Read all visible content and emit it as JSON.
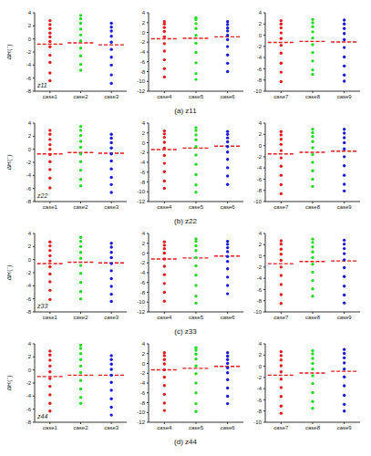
{
  "chart_data": [
    {
      "type": "scatter",
      "y_label": "ΔR(°)",
      "annotations": [
        "z11"
      ],
      "xlim": [
        0.5,
        3.5
      ],
      "xticks": [
        {
          "value": 1,
          "label": "case1"
        },
        {
          "value": 2,
          "label": "case2"
        },
        {
          "value": 3,
          "label": "case3"
        }
      ],
      "ylim": [
        -8,
        4
      ],
      "yticks": [
        -8,
        -6,
        -4,
        -2,
        0,
        2,
        4
      ],
      "series": [
        {
          "x": 1,
          "color": "#e41a1c",
          "marker": "circle",
          "values": [
            2.8,
            2.2,
            1.6,
            0.9,
            0.3,
            -0.4,
            -1.2,
            -2.5,
            -3.6,
            -5.2,
            -6.4
          ]
        },
        {
          "x": 2,
          "color": "#22dd22",
          "marker": "circle",
          "values": [
            3.6,
            3.1,
            2.4,
            1.5,
            0.6,
            -0.3,
            -1.4,
            -2.6,
            -3.9,
            -4.8
          ]
        },
        {
          "x": 3,
          "color": "#1a1ad8",
          "marker": "circle",
          "values": [
            2.4,
            1.8,
            1.2,
            0.4,
            -0.5,
            -1.6,
            -2.8,
            -4.0,
            -5.5,
            -6.8
          ]
        }
      ],
      "mean_line": {
        "values": [
          -0.8,
          -0.6,
          -0.9
        ],
        "color": "#e41a1c",
        "line_style": "dashed"
      }
    },
    {
      "type": "scatter",
      "title": "(a) z11",
      "xlim": [
        0.5,
        3.5
      ],
      "xticks": [
        {
          "value": 1,
          "label": "case4"
        },
        {
          "value": 2,
          "label": "case5"
        },
        {
          "value": 3,
          "label": "case6"
        }
      ],
      "ylim": [
        -12,
        4
      ],
      "yticks": [
        -12,
        -10,
        -8,
        -6,
        -4,
        -2,
        0,
        2,
        4
      ],
      "series": [
        {
          "x": 1,
          "color": "#e41a1c",
          "marker": "circle",
          "values": [
            2.2,
            1.7,
            1.0,
            0.2,
            -0.9,
            -2.3,
            -3.8,
            -5.6,
            -7.4,
            -9.1
          ]
        },
        {
          "x": 2,
          "color": "#22dd22",
          "marker": "circle",
          "values": [
            3.0,
            2.6,
            1.8,
            0.8,
            -0.6,
            -2.2,
            -4.1,
            -6.2,
            -8.4,
            -9.6
          ]
        },
        {
          "x": 3,
          "color": "#1a1ad8",
          "marker": "circle",
          "values": [
            2.2,
            1.6,
            0.9,
            0.3,
            -0.6,
            -1.5,
            -2.9,
            -4.6,
            -6.3,
            -8.0
          ]
        }
      ],
      "mean_line": {
        "values": [
          -1.3,
          -1.2,
          -0.9
        ],
        "color": "#e41a1c",
        "line_style": "dashed"
      }
    },
    {
      "type": "scatter",
      "xlim": [
        0.5,
        3.5
      ],
      "xticks": [
        {
          "value": 1,
          "label": "case7"
        },
        {
          "value": 2,
          "label": "case8"
        },
        {
          "value": 3,
          "label": "case9"
        }
      ],
      "ylim": [
        -10,
        4
      ],
      "yticks": [
        -10,
        -8,
        -6,
        -4,
        -2,
        0,
        2,
        4
      ],
      "series": [
        {
          "x": 1,
          "color": "#e41a1c",
          "marker": "circle",
          "values": [
            2.6,
            2.0,
            1.3,
            0.4,
            -0.6,
            -1.8,
            -3.2,
            -5.0,
            -6.6,
            -8.3
          ]
        },
        {
          "x": 2,
          "color": "#22dd22",
          "marker": "circle",
          "values": [
            2.8,
            2.2,
            1.5,
            0.6,
            -0.5,
            -1.7,
            -3.1,
            -4.6,
            -6.2,
            -7.0
          ]
        },
        {
          "x": 3,
          "color": "#1a1ad8",
          "marker": "circle",
          "values": [
            2.7,
            2.0,
            1.2,
            0.3,
            -0.8,
            -2.2,
            -3.9,
            -5.5,
            -7.1,
            -8.2
          ]
        }
      ],
      "mean_line": {
        "values": [
          -1.3,
          -1.1,
          -1.2
        ],
        "color": "#e41a1c",
        "line_style": "dashed"
      }
    },
    {
      "type": "scatter",
      "y_label": "ΔR(°)",
      "annotations": [
        "z22"
      ],
      "xlim": [
        0.5,
        3.5
      ],
      "xticks": [
        {
          "value": 1,
          "label": "case1"
        },
        {
          "value": 2,
          "label": "case2"
        },
        {
          "value": 3,
          "label": "case3"
        }
      ],
      "ylim": [
        -8,
        4
      ],
      "yticks": [
        -8,
        -6,
        -4,
        -2,
        0,
        2,
        4
      ],
      "series": [
        {
          "x": 1,
          "color": "#e41a1c",
          "marker": "circle",
          "values": [
            2.9,
            2.3,
            1.5,
            0.7,
            0.0,
            -0.8,
            -1.9,
            -3.1,
            -4.4,
            -5.9
          ]
        },
        {
          "x": 2,
          "color": "#22dd22",
          "marker": "circle",
          "values": [
            3.5,
            2.9,
            2.1,
            1.2,
            0.3,
            -0.7,
            -1.9,
            -3.2,
            -4.6,
            -5.6
          ]
        },
        {
          "x": 3,
          "color": "#1a1ad8",
          "marker": "circle",
          "values": [
            2.3,
            1.7,
            1.0,
            0.2,
            -0.7,
            -1.8,
            -3.0,
            -4.3,
            -5.4,
            -6.6
          ]
        }
      ],
      "mean_line": {
        "values": [
          -0.7,
          -0.5,
          -0.6
        ],
        "color": "#e41a1c",
        "line_style": "dashed"
      }
    },
    {
      "type": "scatter",
      "title": "(b) z22",
      "xlim": [
        0.5,
        3.5
      ],
      "xticks": [
        {
          "value": 1,
          "label": "case4"
        },
        {
          "value": 2,
          "label": "case5"
        },
        {
          "value": 3,
          "label": "case6"
        }
      ],
      "ylim": [
        -12,
        4
      ],
      "yticks": [
        -12,
        -10,
        -8,
        -6,
        -4,
        -2,
        0,
        2,
        4
      ],
      "series": [
        {
          "x": 1,
          "color": "#e41a1c",
          "marker": "circle",
          "values": [
            2.4,
            1.8,
            1.1,
            0.1,
            -1.1,
            -2.6,
            -4.2,
            -5.9,
            -7.8,
            -9.3
          ]
        },
        {
          "x": 2,
          "color": "#22dd22",
          "marker": "circle",
          "values": [
            3.1,
            2.5,
            1.6,
            0.6,
            -0.8,
            -2.5,
            -4.4,
            -6.5,
            -8.6,
            -10.1
          ]
        },
        {
          "x": 3,
          "color": "#1a1ad8",
          "marker": "circle",
          "values": [
            2.3,
            1.7,
            1.0,
            0.2,
            -0.8,
            -1.9,
            -3.4,
            -5.1,
            -6.8,
            -8.5
          ]
        }
      ],
      "mean_line": {
        "values": [
          -1.4,
          -1.1,
          -0.7
        ],
        "color": "#e41a1c",
        "line_style": "dashed"
      }
    },
    {
      "type": "scatter",
      "xlim": [
        0.5,
        3.5
      ],
      "xticks": [
        {
          "value": 1,
          "label": "case7"
        },
        {
          "value": 2,
          "label": "case8"
        },
        {
          "value": 3,
          "label": "case9"
        }
      ],
      "ylim": [
        -10,
        4
      ],
      "yticks": [
        -10,
        -8,
        -6,
        -4,
        -2,
        0,
        2,
        4
      ],
      "series": [
        {
          "x": 1,
          "color": "#e41a1c",
          "marker": "circle",
          "values": [
            2.5,
            1.9,
            1.1,
            0.2,
            -0.9,
            -2.2,
            -3.7,
            -5.3,
            -7.0,
            -8.6
          ]
        },
        {
          "x": 2,
          "color": "#22dd22",
          "marker": "circle",
          "values": [
            2.9,
            2.3,
            1.6,
            0.7,
            -0.4,
            -1.6,
            -3.0,
            -4.5,
            -6.0,
            -7.3
          ]
        },
        {
          "x": 3,
          "color": "#1a1ad8",
          "marker": "circle",
          "values": [
            2.9,
            2.2,
            1.4,
            0.5,
            -0.6,
            -2.0,
            -3.6,
            -5.3,
            -6.9,
            -8.1
          ]
        }
      ],
      "mean_line": {
        "values": [
          -1.5,
          -1.2,
          -1.0
        ],
        "color": "#e41a1c",
        "line_style": "dashed"
      }
    },
    {
      "type": "scatter",
      "y_label": "ΔR(°)",
      "annotations": [
        "z33"
      ],
      "xlim": [
        0.5,
        3.5
      ],
      "xticks": [
        {
          "value": 1,
          "label": "case1"
        },
        {
          "value": 2,
          "label": "case2"
        },
        {
          "value": 3,
          "label": "case3"
        }
      ],
      "ylim": [
        -8,
        4
      ],
      "yticks": [
        -8,
        -6,
        -4,
        -2,
        0,
        2,
        4
      ],
      "series": [
        {
          "x": 1,
          "color": "#e41a1c",
          "marker": "circle",
          "values": [
            2.7,
            2.1,
            1.4,
            0.6,
            -0.2,
            -1.1,
            -2.2,
            -3.4,
            -4.7,
            -6.1
          ]
        },
        {
          "x": 2,
          "color": "#22dd22",
          "marker": "circle",
          "values": [
            3.4,
            2.8,
            2.0,
            1.1,
            0.2,
            -0.9,
            -2.1,
            -3.5,
            -4.9,
            -6.0
          ]
        },
        {
          "x": 3,
          "color": "#1a1ad8",
          "marker": "circle",
          "values": [
            2.5,
            1.9,
            1.1,
            0.3,
            -0.6,
            -1.7,
            -2.9,
            -4.1,
            -5.3,
            -6.4
          ]
        }
      ],
      "mean_line": {
        "values": [
          -0.6,
          -0.4,
          -0.5
        ],
        "color": "#e41a1c",
        "line_style": "dashed"
      }
    },
    {
      "type": "scatter",
      "title": "(c) z33",
      "xlim": [
        0.5,
        3.5
      ],
      "xticks": [
        {
          "value": 1,
          "label": "case4"
        },
        {
          "value": 2,
          "label": "case5"
        },
        {
          "value": 3,
          "label": "case6"
        }
      ],
      "ylim": [
        -12,
        4
      ],
      "yticks": [
        -12,
        -10,
        -8,
        -6,
        -4,
        -2,
        0,
        2,
        4
      ],
      "series": [
        {
          "x": 1,
          "color": "#e41a1c",
          "marker": "circle",
          "values": [
            2.3,
            1.6,
            0.9,
            0.0,
            -1.2,
            -2.7,
            -4.4,
            -6.2,
            -8.0,
            -9.8
          ]
        },
        {
          "x": 2,
          "color": "#22dd22",
          "marker": "circle",
          "values": [
            2.9,
            2.4,
            1.5,
            0.5,
            -0.9,
            -2.6,
            -4.5,
            -6.6,
            -8.8,
            -10.2
          ]
        },
        {
          "x": 3,
          "color": "#1a1ad8",
          "marker": "circle",
          "values": [
            2.4,
            1.8,
            1.1,
            0.3,
            -0.7,
            -1.7,
            -3.2,
            -4.9,
            -6.6,
            -8.3
          ]
        }
      ],
      "mean_line": {
        "values": [
          -1.2,
          -1.0,
          -0.6
        ],
        "color": "#e41a1c",
        "line_style": "dashed"
      }
    },
    {
      "type": "scatter",
      "xlim": [
        0.5,
        3.5
      ],
      "xticks": [
        {
          "value": 1,
          "label": "case7"
        },
        {
          "value": 2,
          "label": "case8"
        },
        {
          "value": 3,
          "label": "case9"
        }
      ],
      "ylim": [
        -10,
        4
      ],
      "yticks": [
        -10,
        -8,
        -6,
        -4,
        -2,
        0,
        2,
        4
      ],
      "series": [
        {
          "x": 1,
          "color": "#e41a1c",
          "marker": "circle",
          "values": [
            2.7,
            2.1,
            1.2,
            0.3,
            -0.8,
            -2.0,
            -3.5,
            -5.1,
            -6.9,
            -8.5
          ]
        },
        {
          "x": 2,
          "color": "#22dd22",
          "marker": "circle",
          "values": [
            3.0,
            2.4,
            1.6,
            0.7,
            -0.3,
            -1.5,
            -2.9,
            -4.4,
            -5.9,
            -7.2
          ]
        },
        {
          "x": 3,
          "color": "#1a1ad8",
          "marker": "circle",
          "values": [
            2.8,
            2.1,
            1.3,
            0.4,
            -0.7,
            -2.1,
            -3.7,
            -5.4,
            -7.0,
            -8.4
          ]
        }
      ],
      "mean_line": {
        "values": [
          -1.4,
          -1.0,
          -0.9
        ],
        "color": "#e41a1c",
        "line_style": "dashed"
      }
    },
    {
      "type": "scatter",
      "y_label": "ΔR(°)",
      "annotations": [
        "z44"
      ],
      "xlim": [
        0.5,
        3.5
      ],
      "xticks": [
        {
          "value": 1,
          "label": "case1"
        },
        {
          "value": 2,
          "label": "case2"
        },
        {
          "value": 3,
          "label": "case3"
        }
      ],
      "ylim": [
        -8,
        4
      ],
      "yticks": [
        -8,
        -6,
        -4,
        -2,
        0,
        2,
        4
      ],
      "series": [
        {
          "x": 1,
          "color": "#e41a1c",
          "marker": "circle",
          "values": [
            2.9,
            2.3,
            1.5,
            0.6,
            -0.3,
            -1.3,
            -2.5,
            -3.8,
            -5.1,
            -6.3
          ]
        },
        {
          "x": 2,
          "color": "#22dd22",
          "marker": "circle",
          "values": [
            3.8,
            3.3,
            2.5,
            1.6,
            0.6,
            -0.4,
            -1.6,
            -2.9,
            -4.2,
            -5.1
          ]
        },
        {
          "x": 3,
          "color": "#1a1ad8",
          "marker": "circle",
          "values": [
            2.2,
            1.6,
            0.9,
            0.1,
            -0.8,
            -1.9,
            -3.1,
            -4.4,
            -5.7,
            -6.9
          ]
        }
      ],
      "mean_line": {
        "values": [
          -1.0,
          -0.8,
          -0.8
        ],
        "color": "#e41a1c",
        "line_style": "dashed"
      }
    },
    {
      "type": "scatter",
      "title": "(d) z44",
      "xlim": [
        0.5,
        3.5
      ],
      "xticks": [
        {
          "value": 1,
          "label": "case4"
        },
        {
          "value": 2,
          "label": "case5"
        },
        {
          "value": 3,
          "label": "case6"
        }
      ],
      "ylim": [
        -12,
        4
      ],
      "yticks": [
        -12,
        -10,
        -8,
        -6,
        -4,
        -2,
        0,
        2,
        4
      ],
      "series": [
        {
          "x": 1,
          "color": "#e41a1c",
          "marker": "circle",
          "values": [
            2.2,
            1.6,
            0.8,
            -0.1,
            -1.3,
            -2.8,
            -4.5,
            -6.3,
            -8.1,
            -9.6
          ]
        },
        {
          "x": 2,
          "color": "#22dd22",
          "marker": "circle",
          "values": [
            3.2,
            2.7,
            1.9,
            0.9,
            -0.5,
            -2.1,
            -4.0,
            -6.0,
            -8.2,
            -9.8
          ]
        },
        {
          "x": 3,
          "color": "#1a1ad8",
          "marker": "circle",
          "values": [
            2.2,
            1.5,
            0.8,
            0.0,
            -0.9,
            -1.9,
            -3.3,
            -5.0,
            -6.7,
            -8.2
          ]
        }
      ],
      "mean_line": {
        "values": [
          -1.3,
          -1.0,
          -0.6
        ],
        "color": "#e41a1c",
        "line_style": "dashed"
      }
    },
    {
      "type": "scatter",
      "xlim": [
        0.5,
        3.5
      ],
      "xticks": [
        {
          "value": 1,
          "label": "case7"
        },
        {
          "value": 2,
          "label": "case8"
        },
        {
          "value": 3,
          "label": "case9"
        }
      ],
      "ylim": [
        -10,
        4
      ],
      "yticks": [
        -10,
        -8,
        -6,
        -4,
        -2,
        0,
        2,
        4
      ],
      "series": [
        {
          "x": 1,
          "color": "#e41a1c",
          "marker": "circle",
          "values": [
            2.6,
            1.9,
            1.1,
            0.1,
            -1.0,
            -2.3,
            -3.8,
            -5.4,
            -7.1,
            -8.4
          ]
        },
        {
          "x": 2,
          "color": "#22dd22",
          "marker": "circle",
          "values": [
            2.8,
            2.2,
            1.4,
            0.5,
            -0.5,
            -1.7,
            -3.1,
            -4.7,
            -6.3,
            -7.5
          ]
        },
        {
          "x": 3,
          "color": "#1a1ad8",
          "marker": "circle",
          "values": [
            3.0,
            2.3,
            1.5,
            0.6,
            -0.5,
            -1.9,
            -3.5,
            -5.2,
            -6.8,
            -8.0
          ]
        }
      ],
      "mean_line": {
        "values": [
          -1.6,
          -1.2,
          -0.9
        ],
        "color": "#e41a1c",
        "line_style": "dashed"
      }
    }
  ]
}
